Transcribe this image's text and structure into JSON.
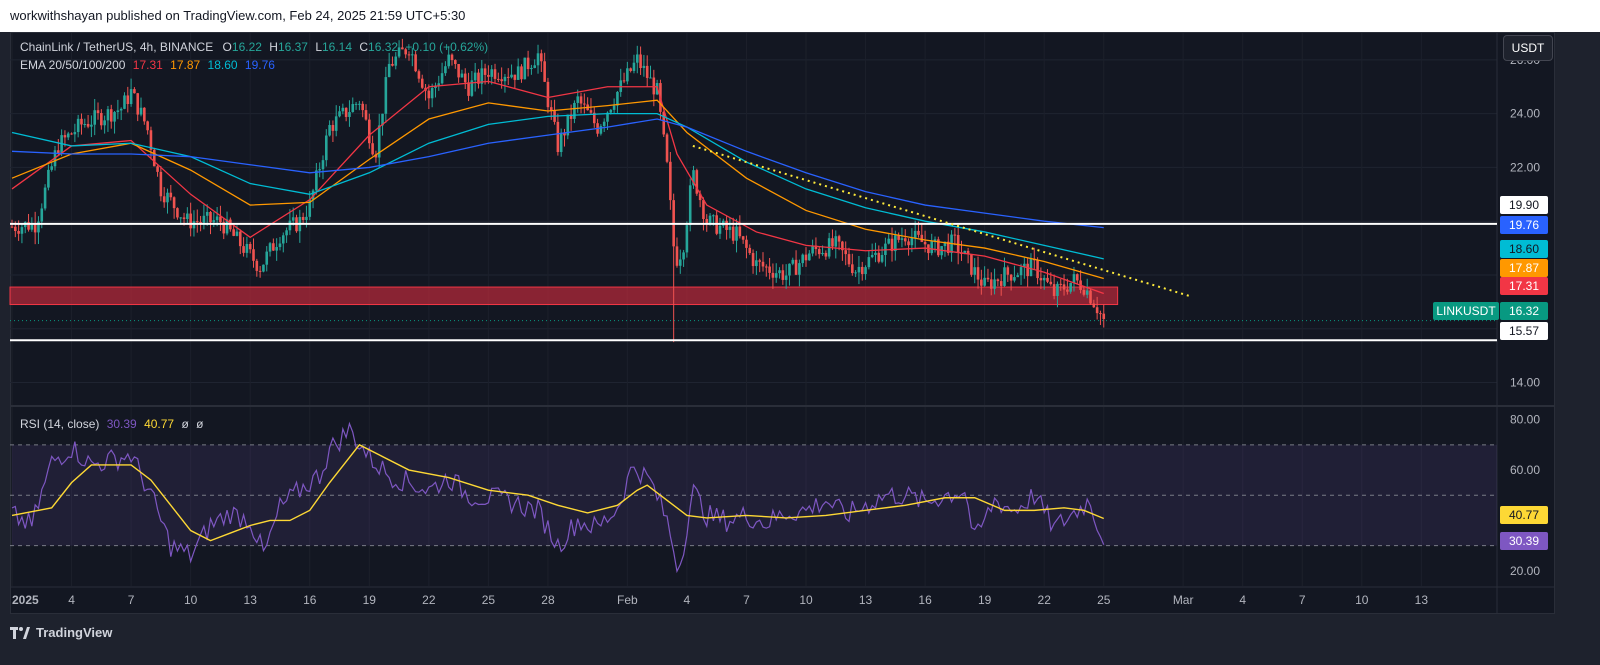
{
  "header": {
    "publisher_line": "workwithshayan published on TradingView.com, Feb 24, 2025 21:59 UTC+5:30"
  },
  "branding": {
    "logo_text": "TradingView"
  },
  "currency_button": "USDT",
  "legend": {
    "symbol": "ChainLink / TetherUS, 4h, BINANCE",
    "o_label": "O",
    "o_value": "16.22",
    "h_label": "H",
    "h_value": "16.37",
    "l_label": "L",
    "l_value": "16.14",
    "c_label": "C",
    "c_value": "16.32",
    "change": "+0.10 (+0.62%)",
    "ema_title": "EMA 20/50/100/200",
    "ema_values": [
      "17.31",
      "17.87",
      "18.60",
      "19.76"
    ],
    "rsi_title": "RSI (14, close)",
    "rsi_value": "30.39",
    "rsi_ma_value": "40.77",
    "rsi_extra": [
      "ø",
      "ø"
    ]
  },
  "colors": {
    "up": "#26a69a",
    "down": "#ef5350",
    "ema20": "#f23645",
    "ema50": "#ff9800",
    "ema100": "#00bcd4",
    "ema200": "#2962ff",
    "rsi": "#7e57c2",
    "rsi_ma": "#fdd835",
    "trendline": "#ffeb3b",
    "zone": "#b2283a"
  },
  "price_axis": {
    "ticks": [
      "26.00",
      "24.00",
      "22.00",
      "14.00"
    ]
  },
  "price_labels": [
    {
      "text": "19.90",
      "value": 19.9,
      "bg": "#ffffff",
      "fg": "#131722"
    },
    {
      "text": "19.76",
      "value": 19.76,
      "bg": "#2962ff",
      "fg": "#ffffff"
    },
    {
      "text": "18.60",
      "value": 18.6,
      "bg": "#00bcd4",
      "fg": "#131722"
    },
    {
      "text": "17.87",
      "value": 17.87,
      "bg": "#ff9800",
      "fg": "#ffffff"
    },
    {
      "text": "17.31",
      "value": 17.31,
      "bg": "#f23645",
      "fg": "#ffffff"
    },
    {
      "text": "16.32",
      "value": 16.32,
      "bg": "#089981",
      "fg": "#ffffff"
    },
    {
      "text": "15.57",
      "value": 15.57,
      "bg": "#ffffff",
      "fg": "#131722"
    }
  ],
  "symbol_tag": "LINKUSDT",
  "rsi_axis": {
    "ticks": [
      "80.00",
      "60.00",
      "20.00"
    ]
  },
  "rsi_labels": [
    {
      "text": "40.77",
      "value": 40.77,
      "bg": "#fdd835",
      "fg": "#131722"
    },
    {
      "text": "30.39",
      "value": 30.39,
      "bg": "#7e57c2",
      "fg": "#ffffff"
    }
  ],
  "time_axis": {
    "labels": [
      {
        "text": "2025",
        "day": 1,
        "bold": true
      },
      {
        "text": "4",
        "day": 4
      },
      {
        "text": "7",
        "day": 7
      },
      {
        "text": "10",
        "day": 10
      },
      {
        "text": "13",
        "day": 13
      },
      {
        "text": "16",
        "day": 16
      },
      {
        "text": "19",
        "day": 19
      },
      {
        "text": "22",
        "day": 22
      },
      {
        "text": "25",
        "day": 25
      },
      {
        "text": "28",
        "day": 28
      },
      {
        "text": "Feb",
        "day": 32
      },
      {
        "text": "4",
        "day": 35
      },
      {
        "text": "7",
        "day": 38
      },
      {
        "text": "10",
        "day": 41
      },
      {
        "text": "13",
        "day": 44
      },
      {
        "text": "16",
        "day": 47
      },
      {
        "text": "19",
        "day": 50
      },
      {
        "text": "22",
        "day": 53
      },
      {
        "text": "25",
        "day": 56
      },
      {
        "text": "Mar",
        "day": 60
      },
      {
        "text": "4",
        "day": 63
      },
      {
        "text": "7",
        "day": 66
      },
      {
        "text": "10",
        "day": 69
      },
      {
        "text": "13",
        "day": 72
      }
    ]
  },
  "chart_data": {
    "type": "candlestick",
    "title": "ChainLink / TetherUS, 4h, BINANCE",
    "x_unit": "day of 2025 (Jan 1 = 1)",
    "price_range": [
      13.2,
      27.0
    ],
    "horizontal_levels": [
      19.9,
      15.57
    ],
    "support_zone": {
      "from_day": 1,
      "to_day": 56.7,
      "low": 16.9,
      "high": 17.55
    },
    "trendline": {
      "start": {
        "day": 35.3,
        "price": 22.8
      },
      "end": {
        "day": 60.4,
        "price": 17.2
      }
    },
    "price_path": [
      {
        "day": 1,
        "price": 19.8
      },
      {
        "day": 2.2,
        "price": 19.9
      },
      {
        "day": 3.3,
        "price": 22.8
      },
      {
        "day": 4.5,
        "price": 23.6
      },
      {
        "day": 6.5,
        "price": 24.2
      },
      {
        "day": 7.0,
        "price": 24.8
      },
      {
        "day": 7.8,
        "price": 23.5
      },
      {
        "day": 8.5,
        "price": 21.2
      },
      {
        "day": 9.8,
        "price": 20.0
      },
      {
        "day": 11.5,
        "price": 20.0
      },
      {
        "day": 13.5,
        "price": 18.3
      },
      {
        "day": 14.5,
        "price": 19.5
      },
      {
        "day": 15.5,
        "price": 20.0
      },
      {
        "day": 16.0,
        "price": 20.6
      },
      {
        "day": 17.0,
        "price": 23.5
      },
      {
        "day": 18.5,
        "price": 24.5
      },
      {
        "day": 19.3,
        "price": 22.5
      },
      {
        "day": 20.0,
        "price": 25.8
      },
      {
        "day": 21.0,
        "price": 26.5
      },
      {
        "day": 22.0,
        "price": 24.6
      },
      {
        "day": 23.0,
        "price": 26.0
      },
      {
        "day": 24.0,
        "price": 25.0
      },
      {
        "day": 25.0,
        "price": 25.6
      },
      {
        "day": 26.5,
        "price": 25.5
      },
      {
        "day": 27.5,
        "price": 26.2
      },
      {
        "day": 28.5,
        "price": 22.8
      },
      {
        "day": 29.5,
        "price": 24.5
      },
      {
        "day": 30.5,
        "price": 23.5
      },
      {
        "day": 31.5,
        "price": 24.8
      },
      {
        "day": 32.5,
        "price": 26.0
      },
      {
        "day": 33.5,
        "price": 24.8
      },
      {
        "day": 34.0,
        "price": 22.0
      },
      {
        "day": 34.4,
        "price": 18.5
      },
      {
        "day": 34.8,
        "price": 19.0
      },
      {
        "day": 35.3,
        "price": 21.8
      },
      {
        "day": 36.0,
        "price": 20.0
      },
      {
        "day": 37.5,
        "price": 19.5
      },
      {
        "day": 38.5,
        "price": 18.4
      },
      {
        "day": 40.0,
        "price": 18.0
      },
      {
        "day": 41.3,
        "price": 18.9
      },
      {
        "day": 42.5,
        "price": 19.1
      },
      {
        "day": 43.5,
        "price": 18.2
      },
      {
        "day": 45.0,
        "price": 19.0
      },
      {
        "day": 46.0,
        "price": 19.5
      },
      {
        "day": 47.5,
        "price": 19.0
      },
      {
        "day": 48.5,
        "price": 19.2
      },
      {
        "day": 49.5,
        "price": 18.1
      },
      {
        "day": 50.0,
        "price": 17.6
      },
      {
        "day": 51.0,
        "price": 18.0
      },
      {
        "day": 52.5,
        "price": 18.3
      },
      {
        "day": 53.5,
        "price": 17.3
      },
      {
        "day": 54.5,
        "price": 17.8
      },
      {
        "day": 55.0,
        "price": 17.6
      },
      {
        "day": 55.6,
        "price": 16.9
      },
      {
        "day": 56.0,
        "price": 16.3
      }
    ],
    "wick_low": {
      "day": 34.4,
      "price": 15.5
    },
    "ema": [
      {
        "name": "EMA 20",
        "last": 17.31,
        "color": "#f23645",
        "points": [
          [
            1,
            21.2
          ],
          [
            4,
            22.8
          ],
          [
            7,
            23.0
          ],
          [
            10,
            21.0
          ],
          [
            13,
            19.4
          ],
          [
            16,
            20.8
          ],
          [
            19,
            23.2
          ],
          [
            22,
            25.0
          ],
          [
            25,
            25.2
          ],
          [
            28,
            24.6
          ],
          [
            31,
            25.0
          ],
          [
            33.5,
            25.0
          ],
          [
            34.5,
            22.5
          ],
          [
            36,
            20.6
          ],
          [
            38.5,
            19.6
          ],
          [
            41,
            19.1
          ],
          [
            44,
            18.9
          ],
          [
            47,
            19.0
          ],
          [
            50,
            18.7
          ],
          [
            53,
            18.1
          ],
          [
            56,
            17.31
          ]
        ]
      },
      {
        "name": "EMA 50",
        "last": 17.87,
        "color": "#ff9800",
        "points": [
          [
            1,
            21.6
          ],
          [
            4,
            22.5
          ],
          [
            7,
            22.9
          ],
          [
            10,
            21.9
          ],
          [
            13,
            20.6
          ],
          [
            16,
            20.7
          ],
          [
            19,
            22.3
          ],
          [
            22,
            23.8
          ],
          [
            25,
            24.4
          ],
          [
            28,
            24.1
          ],
          [
            31,
            24.3
          ],
          [
            33.5,
            24.5
          ],
          [
            35,
            23.3
          ],
          [
            38,
            21.6
          ],
          [
            41,
            20.4
          ],
          [
            44,
            19.7
          ],
          [
            47,
            19.3
          ],
          [
            50,
            19.0
          ],
          [
            53,
            18.5
          ],
          [
            56,
            17.87
          ]
        ]
      },
      {
        "name": "EMA 100",
        "last": 18.6,
        "color": "#00bcd4",
        "points": [
          [
            1,
            23.3
          ],
          [
            4,
            22.8
          ],
          [
            7,
            22.9
          ],
          [
            10,
            22.4
          ],
          [
            13,
            21.4
          ],
          [
            16,
            21.0
          ],
          [
            19,
            21.8
          ],
          [
            22,
            22.9
          ],
          [
            25,
            23.6
          ],
          [
            28,
            23.9
          ],
          [
            31,
            24.0
          ],
          [
            33.5,
            24.0
          ],
          [
            35,
            23.5
          ],
          [
            38,
            22.2
          ],
          [
            41,
            21.2
          ],
          [
            44,
            20.5
          ],
          [
            47,
            20.0
          ],
          [
            50,
            19.6
          ],
          [
            53,
            19.1
          ],
          [
            56,
            18.6
          ]
        ]
      },
      {
        "name": "EMA 200",
        "last": 19.76,
        "color": "#2962ff",
        "points": [
          [
            1,
            22.6
          ],
          [
            4,
            22.5
          ],
          [
            7,
            22.5
          ],
          [
            10,
            22.4
          ],
          [
            13,
            22.1
          ],
          [
            16,
            21.8
          ],
          [
            19,
            22.0
          ],
          [
            22,
            22.4
          ],
          [
            25,
            22.9
          ],
          [
            28,
            23.2
          ],
          [
            31,
            23.5
          ],
          [
            33.5,
            23.8
          ],
          [
            35,
            23.5
          ],
          [
            38,
            22.6
          ],
          [
            41,
            21.8
          ],
          [
            44,
            21.1
          ],
          [
            47,
            20.6
          ],
          [
            50,
            20.3
          ],
          [
            53,
            20.0
          ],
          [
            56,
            19.76
          ]
        ]
      }
    ],
    "rsi": {
      "title": "RSI (14, close)",
      "last": 30.39,
      "ma_last": 40.77,
      "range": [
        14,
        85
      ],
      "bands": [
        70,
        50,
        30
      ],
      "points": [
        [
          1,
          42
        ],
        [
          2,
          38
        ],
        [
          3,
          63
        ],
        [
          4,
          69
        ],
        [
          5,
          62
        ],
        [
          6,
          64
        ],
        [
          7,
          66
        ],
        [
          8,
          50
        ],
        [
          9,
          30
        ],
        [
          10,
          26
        ],
        [
          11,
          38
        ],
        [
          12,
          43
        ],
        [
          13,
          40
        ],
        [
          13.7,
          26
        ],
        [
          14.5,
          45
        ],
        [
          15.5,
          52
        ],
        [
          16.5,
          58
        ],
        [
          17,
          68
        ],
        [
          18,
          76
        ],
        [
          19,
          65
        ],
        [
          20,
          58
        ],
        [
          21,
          55
        ],
        [
          22,
          52
        ],
        [
          23,
          57
        ],
        [
          24,
          50
        ],
        [
          25,
          49
        ],
        [
          26,
          48
        ],
        [
          27,
          45
        ],
        [
          27.5,
          44
        ],
        [
          28.5,
          30
        ],
        [
          29.5,
          40
        ],
        [
          30.5,
          37
        ],
        [
          31.5,
          45
        ],
        [
          32.3,
          62
        ],
        [
          33.2,
          55
        ],
        [
          34,
          40
        ],
        [
          34.6,
          20
        ],
        [
          35.3,
          52
        ],
        [
          36,
          42
        ],
        [
          37,
          40
        ],
        [
          38,
          42
        ],
        [
          39,
          39
        ],
        [
          40,
          43
        ],
        [
          41,
          44
        ],
        [
          42,
          48
        ],
        [
          43,
          42
        ],
        [
          44,
          46
        ],
        [
          45,
          50
        ],
        [
          46,
          50
        ],
        [
          47,
          47
        ],
        [
          48,
          50
        ],
        [
          49,
          52
        ],
        [
          49.5,
          32
        ],
        [
          50.5,
          48
        ],
        [
          51.5,
          44
        ],
        [
          52.5,
          50
        ],
        [
          53.5,
          37
        ],
        [
          54.5,
          43
        ],
        [
          55.3,
          48
        ],
        [
          55.8,
          36
        ],
        [
          56,
          30.39
        ]
      ],
      "ma_points": [
        [
          1,
          42
        ],
        [
          3,
          45
        ],
        [
          4,
          55
        ],
        [
          5,
          62
        ],
        [
          7,
          62
        ],
        [
          8,
          56
        ],
        [
          9,
          46
        ],
        [
          10,
          36
        ],
        [
          11,
          32
        ],
        [
          12,
          35
        ],
        [
          13,
          38
        ],
        [
          14,
          40
        ],
        [
          15,
          40
        ],
        [
          16,
          44
        ],
        [
          17,
          55
        ],
        [
          18,
          65
        ],
        [
          18.5,
          70
        ],
        [
          19.5,
          66
        ],
        [
          21,
          60
        ],
        [
          23,
          57
        ],
        [
          25,
          52
        ],
        [
          27,
          50
        ],
        [
          28.5,
          46
        ],
        [
          30,
          43
        ],
        [
          31.5,
          46
        ],
        [
          32.5,
          52
        ],
        [
          33,
          54
        ],
        [
          34,
          48
        ],
        [
          35,
          42
        ],
        [
          36,
          41
        ],
        [
          38,
          42
        ],
        [
          40,
          41
        ],
        [
          42,
          42
        ],
        [
          44,
          44
        ],
        [
          46,
          46
        ],
        [
          48,
          49
        ],
        [
          49.5,
          49
        ],
        [
          51,
          44
        ],
        [
          52.5,
          44
        ],
        [
          54,
          45
        ],
        [
          55,
          44
        ],
        [
          56,
          40.77
        ]
      ]
    }
  }
}
